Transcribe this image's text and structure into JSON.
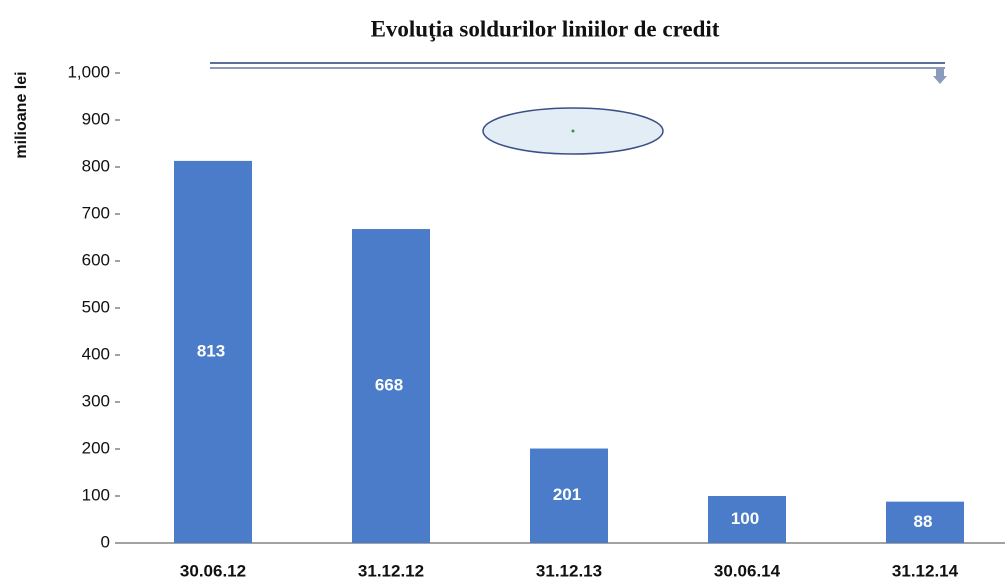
{
  "chart_data": {
    "type": "bar",
    "title": "Evoluţia soldurilor liniilor de credit",
    "y_label": "milioane lei",
    "categories": [
      "30.06.12",
      "31.12.12",
      "31.12.13",
      "30.06.14",
      "31.12.14"
    ],
    "values": [
      813,
      668,
      201,
      100,
      88
    ],
    "color": "#4a7cc9",
    "ylim": [
      0,
      1000
    ],
    "yticks": [
      0,
      100,
      200,
      300,
      400,
      500,
      600,
      700,
      800,
      900,
      {
        "value": 1000,
        "label": "1,000"
      }
    ],
    "grid": false
  }
}
